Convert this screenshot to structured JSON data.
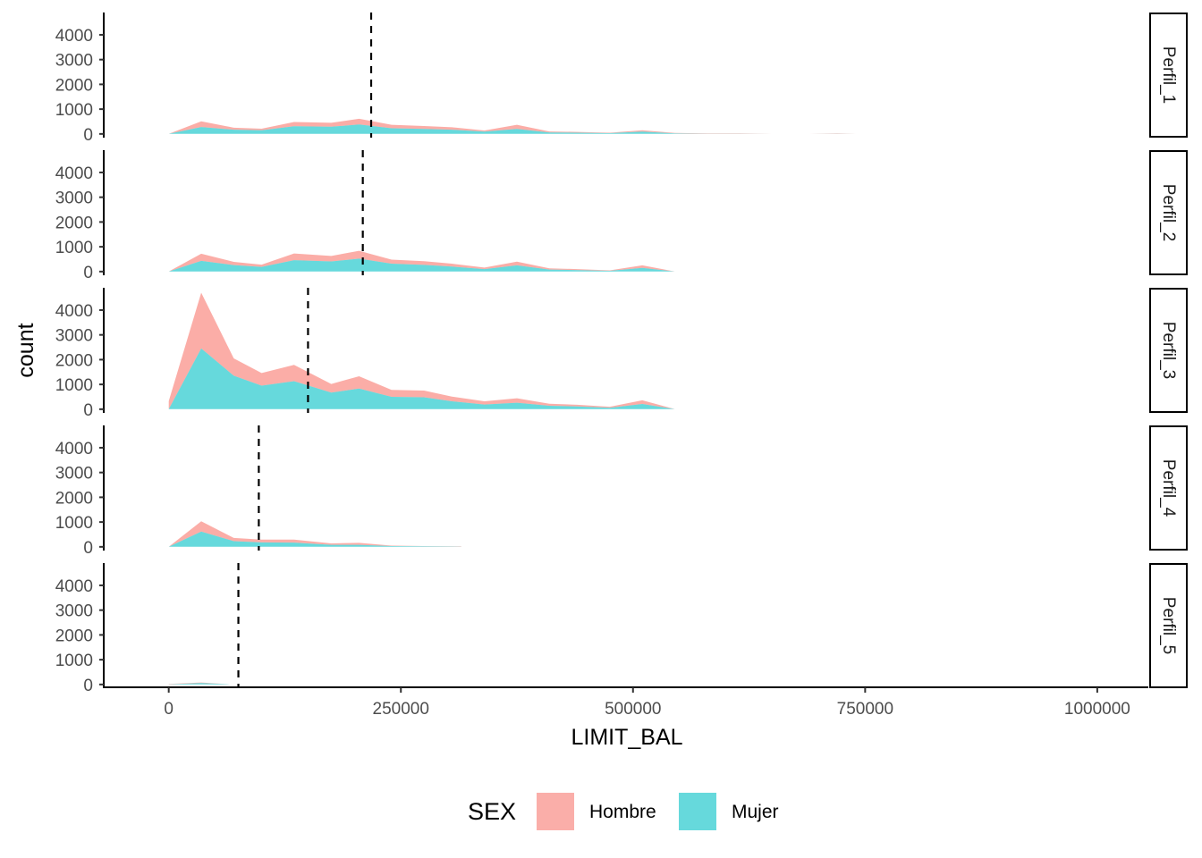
{
  "chart_data": {
    "type": "area",
    "subtype": "stacked-histogram-facets",
    "xlabel": "LIMIT_BAL",
    "ylabel": "count",
    "xlim": [
      -70000,
      1055000
    ],
    "ylim": [
      -150,
      4900
    ],
    "x_ticks": [
      0,
      250000,
      500000,
      750000,
      1000000
    ],
    "x_tick_labels": [
      "0",
      "250000",
      "500000",
      "750000",
      "1000000"
    ],
    "y_ticks": [
      0,
      1000,
      2000,
      3000,
      4000
    ],
    "y_tick_labels": [
      "0",
      "1000",
      "2000",
      "3000",
      "4000"
    ],
    "grid": false,
    "legend": {
      "title": "SEX",
      "position": "bottom"
    },
    "series": [
      {
        "name": "Hombre",
        "color": "#F8766D",
        "opacity": 0.6
      },
      {
        "name": "Mujer",
        "color": "#00BFC4",
        "opacity": 0.6
      }
    ],
    "facets": [
      {
        "label": "Perfil_1",
        "mean_line": 218000,
        "x": [
          0,
          35000,
          70000,
          100000,
          135000,
          175000,
          205000,
          240000,
          275000,
          305000,
          340000,
          375000,
          410000,
          440000,
          475000,
          510000,
          545000,
          580000,
          615000,
          650000,
          690000,
          720000,
          740000
        ],
        "mujer": [
          0,
          280,
          170,
          150,
          310,
          290,
          380,
          230,
          200,
          170,
          90,
          200,
          60,
          50,
          30,
          90,
          20,
          10,
          10,
          0,
          0,
          10,
          0
        ],
        "hombre": [
          0,
          230,
          80,
          60,
          170,
          160,
          230,
          140,
          120,
          100,
          50,
          170,
          40,
          30,
          20,
          60,
          20,
          10,
          10,
          0,
          0,
          10,
          0
        ]
      },
      {
        "label": "Perfil_2",
        "mean_line": 209000,
        "x": [
          0,
          35000,
          70000,
          100000,
          135000,
          175000,
          205000,
          240000,
          275000,
          305000,
          340000,
          375000,
          410000,
          440000,
          475000,
          510000,
          545000
        ],
        "mujer": [
          0,
          430,
          260,
          190,
          460,
          410,
          520,
          320,
          270,
          200,
          100,
          250,
          80,
          60,
          30,
          150,
          0
        ],
        "hombre": [
          0,
          290,
          130,
          90,
          270,
          220,
          320,
          160,
          150,
          120,
          60,
          150,
          50,
          40,
          20,
          100,
          0
        ]
      },
      {
        "label": "Perfil_3",
        "mean_line": 150000,
        "x": [
          0,
          35000,
          70000,
          100000,
          135000,
          175000,
          205000,
          240000,
          275000,
          305000,
          340000,
          375000,
          410000,
          440000,
          475000,
          510000,
          545000
        ],
        "mujer": [
          0,
          2450,
          1350,
          950,
          1130,
          670,
          830,
          500,
          480,
          320,
          190,
          260,
          140,
          110,
          60,
          210,
          0
        ],
        "hombre": [
          330,
          2250,
          700,
          510,
          660,
          350,
          500,
          280,
          270,
          190,
          130,
          180,
          80,
          70,
          40,
          150,
          0
        ]
      },
      {
        "label": "Perfil_4",
        "mean_line": 97000,
        "x": [
          0,
          35000,
          70000,
          100000,
          135000,
          175000,
          205000,
          240000,
          275000,
          315000
        ],
        "mujer": [
          0,
          620,
          230,
          180,
          170,
          80,
          80,
          30,
          20,
          10
        ],
        "hombre": [
          0,
          410,
          130,
          110,
          120,
          60,
          80,
          20,
          10,
          10
        ]
      },
      {
        "label": "Perfil_5",
        "mean_line": 75000,
        "x": [
          0,
          35000,
          65000
        ],
        "mujer": [
          10,
          60,
          10
        ],
        "hombre": [
          10,
          20,
          0
        ]
      }
    ]
  }
}
